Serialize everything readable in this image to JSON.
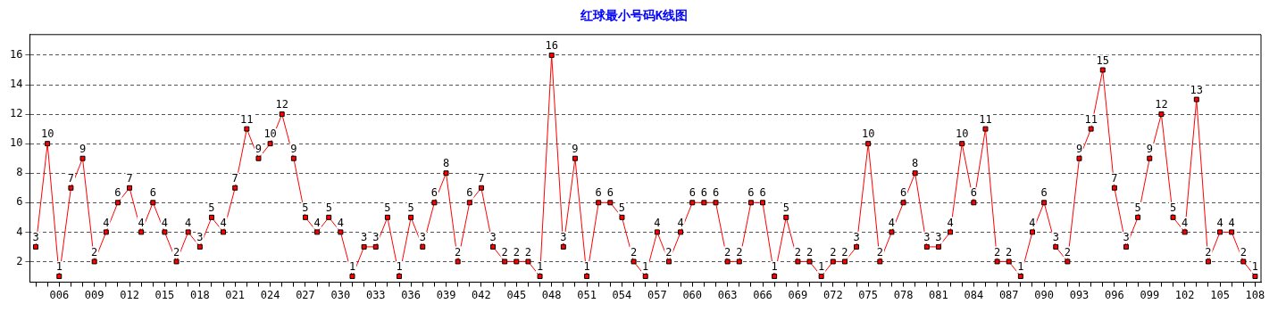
{
  "chart_data": {
    "type": "line",
    "title": "红球最小号码K线图",
    "categories": [
      null,
      null,
      "006",
      null,
      null,
      "009",
      null,
      null,
      "012",
      null,
      null,
      "015",
      null,
      null,
      "018",
      null,
      null,
      "021",
      null,
      null,
      "024",
      null,
      null,
      "027",
      null,
      null,
      "030",
      null,
      null,
      "033",
      null,
      null,
      "036",
      null,
      null,
      "039",
      null,
      null,
      "042",
      null,
      null,
      "045",
      null,
      null,
      "048",
      null,
      null,
      "051",
      null,
      null,
      "054",
      null,
      null,
      "057",
      null,
      null,
      "060",
      null,
      null,
      "063",
      null,
      null,
      "066",
      null,
      null,
      "069",
      null,
      null,
      "072",
      null,
      null,
      "075",
      null,
      null,
      "078",
      null,
      null,
      "081",
      null,
      null,
      "084",
      null,
      null,
      "087",
      null,
      null,
      "090",
      null,
      null,
      "093",
      null,
      null,
      "096",
      null,
      null,
      "099",
      null,
      null,
      "102",
      null,
      null,
      "105",
      null,
      null,
      "108"
    ],
    "series": [
      {
        "color": "#ff0000",
        "values": [
          3,
          10,
          1,
          7,
          9,
          2,
          4,
          6,
          7,
          4,
          6,
          4,
          2,
          4,
          3,
          5,
          4,
          7,
          11,
          9,
          10,
          12,
          9,
          5,
          4,
          5,
          4,
          1,
          3,
          3,
          5,
          1,
          5,
          3,
          6,
          8,
          2,
          6,
          7,
          3,
          2,
          2,
          2,
          1,
          16,
          3,
          9,
          1,
          6,
          6,
          5,
          2,
          1,
          4,
          2,
          4,
          6,
          6,
          6,
          2,
          2,
          6,
          6,
          1,
          5,
          2,
          2,
          1,
          2,
          2,
          3,
          10,
          2,
          4,
          6,
          8,
          3,
          3,
          4,
          10,
          6,
          11,
          2,
          2,
          1,
          4,
          6,
          3,
          2,
          9,
          11,
          15,
          7,
          3,
          5,
          9,
          12,
          5,
          4,
          13,
          2,
          4,
          4,
          2,
          1
        ]
      }
    ],
    "ylim": [
      0.6,
      17.4
    ],
    "yticks": [
      2,
      4,
      6,
      8,
      10,
      12,
      14,
      16
    ],
    "grid": "y",
    "legend": false,
    "marker": "square",
    "line_style": "solid",
    "data_labels": true
  }
}
